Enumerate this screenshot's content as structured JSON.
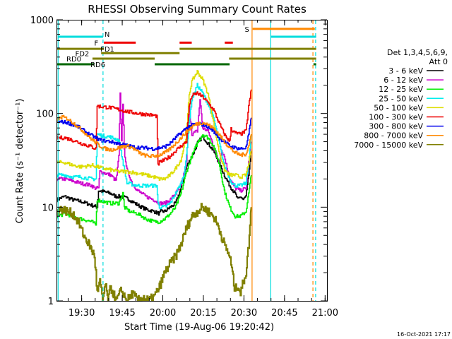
{
  "chart_data": {
    "type": "line",
    "title": "RHESSI Observing Summary Count Rates",
    "xlabel": "Start Time (19-Aug-06 19:20:42)",
    "ylabel": "Count Rate (s⁻¹ detector⁻¹)",
    "yscale": "log",
    "ylim": [
      1,
      1000
    ],
    "xlim_minutes": [
      0,
      100
    ],
    "x_ticks": [
      {
        "label": "19:30",
        "minute": 9.3
      },
      {
        "label": "19:45",
        "minute": 24.3
      },
      {
        "label": "20:00",
        "minute": 39.3
      },
      {
        "label": "20:15",
        "minute": 54.3
      },
      {
        "label": "20:30",
        "minute": 69.3
      },
      {
        "label": "20:45",
        "minute": 84.3
      },
      {
        "label": "21:00",
        "minute": 99.3
      }
    ],
    "y_ticks": [
      {
        "label": "1",
        "value": 1
      },
      {
        "label": "10",
        "value": 10
      },
      {
        "label": "100",
        "value": 100
      },
      {
        "label": "1000",
        "value": 1000
      }
    ],
    "legend_header": [
      "Det 1,3,4,5,6,9,",
      "Att 0"
    ],
    "legend_position": "right",
    "timestamp": "16-Oct-2021 17:17",
    "series": [
      {
        "name": "3 - 6 keV",
        "color": "#000000",
        "x": [
          0,
          3,
          6,
          9,
          13,
          15,
          15.5,
          18,
          20,
          22,
          24,
          27,
          30,
          33,
          36,
          38,
          38.5,
          40,
          42,
          44,
          46,
          48,
          50,
          51,
          52,
          54,
          56,
          58,
          60,
          62,
          64,
          66,
          67,
          68,
          69,
          70,
          71,
          72
        ],
        "y": [
          12,
          13,
          12,
          11.5,
          10.5,
          10,
          15,
          14.5,
          14,
          13,
          13,
          12,
          10.5,
          9.5,
          9,
          8.5,
          9,
          9,
          10,
          11,
          16,
          27,
          35,
          40,
          48,
          57,
          48,
          40,
          30,
          22,
          17,
          14,
          12,
          13,
          12,
          13,
          22,
          40
        ]
      },
      {
        "name": "6 - 12 keV",
        "color": "#cc00cc",
        "x": [
          0,
          3,
          6,
          9,
          13,
          14,
          15.5,
          16,
          18,
          20,
          22,
          23,
          23.5,
          24,
          24.5,
          25,
          26,
          28,
          30,
          33,
          36,
          38,
          40,
          42,
          44,
          46,
          48,
          49,
          50,
          52,
          53,
          54,
          56,
          58,
          60,
          61,
          62,
          64,
          66,
          68,
          70,
          71,
          72
        ],
        "y": [
          20,
          20,
          19,
          18,
          17,
          16,
          16,
          24,
          23,
          22,
          19,
          35,
          160,
          50,
          130,
          40,
          25,
          18,
          15,
          13,
          12,
          11,
          11,
          12,
          14,
          17,
          30,
          120,
          60,
          65,
          140,
          70,
          65,
          45,
          30,
          40,
          35,
          20,
          16,
          15,
          16,
          30,
          50
        ]
      },
      {
        "name": "12 - 25 keV",
        "color": "#00ee00",
        "x": [
          0,
          3,
          6,
          9,
          13,
          14.5,
          15,
          17,
          20,
          23,
          24,
          24.5,
          25,
          27,
          30,
          33,
          36,
          38,
          40,
          42,
          44,
          46,
          48,
          50,
          52,
          54,
          56,
          58,
          60,
          62,
          64,
          66,
          68,
          70,
          71,
          72
        ],
        "y": [
          8,
          8.5,
          8,
          7.5,
          7,
          6.5,
          12,
          11.5,
          11,
          11,
          13,
          14,
          10,
          9,
          8.5,
          7.5,
          7,
          7,
          7.5,
          8.5,
          10,
          14,
          24,
          35,
          48,
          60,
          55,
          45,
          30,
          15,
          10,
          8,
          8,
          9,
          14,
          22
        ]
      },
      {
        "name": "25 - 50 keV",
        "color": "#00eeee",
        "x": [
          0,
          3,
          6,
          9,
          13,
          14.5,
          15,
          17,
          20,
          23,
          26,
          30,
          33,
          36,
          37,
          37.5,
          38,
          40,
          42,
          44,
          46,
          47,
          48,
          49,
          50,
          52,
          54,
          56,
          58,
          60,
          62,
          64,
          65,
          66,
          68,
          70,
          71,
          72
        ],
        "y": [
          22,
          22,
          21,
          21,
          20,
          20,
          60,
          58,
          56,
          52,
          18,
          17,
          17,
          17,
          17,
          11,
          10,
          10,
          11,
          14,
          18,
          22,
          35,
          80,
          140,
          200,
          165,
          125,
          90,
          50,
          28,
          20,
          18,
          17,
          17,
          18,
          30,
          60
        ]
      },
      {
        "name": "50 - 100 keV",
        "color": "#dddd00",
        "x": [
          0,
          3,
          6,
          9,
          13,
          15,
          17,
          20,
          23,
          26,
          30,
          33,
          36,
          38,
          40,
          42,
          44,
          46,
          48,
          49,
          50,
          52,
          54,
          56,
          58,
          60,
          62,
          64,
          66,
          68,
          70,
          71,
          72
        ],
        "y": [
          30,
          30,
          28,
          27,
          28,
          27,
          26,
          25,
          24,
          24,
          23,
          22,
          21,
          20,
          20,
          22,
          26,
          32,
          60,
          160,
          220,
          280,
          230,
          160,
          80,
          40,
          25,
          22,
          22,
          21,
          22,
          30,
          40
        ]
      },
      {
        "name": "100 - 300 keV",
        "color": "#ee0000",
        "x": [
          0,
          3,
          6,
          9,
          13,
          14.5,
          15,
          17,
          20,
          23,
          26,
          30,
          33,
          36,
          37,
          37.5,
          38,
          40,
          42,
          44,
          46,
          48,
          49,
          50,
          52,
          54,
          56,
          58,
          60,
          62,
          64,
          64.5,
          65,
          66,
          68,
          70,
          71,
          72
        ],
        "y": [
          55,
          55,
          52,
          48,
          44,
          42,
          120,
          118,
          115,
          110,
          105,
          100,
          98,
          95,
          94,
          28,
          30,
          32,
          35,
          40,
          45,
          50,
          120,
          155,
          165,
          150,
          130,
          110,
          80,
          60,
          50,
          70,
          65,
          62,
          60,
          65,
          120,
          180
        ]
      },
      {
        "name": "300 - 800 keV",
        "color": "#0000ee",
        "x": [
          0,
          4,
          8,
          12,
          16,
          20,
          24,
          28,
          32,
          36,
          38,
          40,
          42,
          44,
          46,
          48,
          50,
          52,
          54,
          56,
          58,
          60,
          62,
          64,
          66,
          68,
          70,
          71,
          72
        ],
        "y": [
          82,
          80,
          72,
          60,
          52,
          50,
          47,
          44,
          43,
          42,
          43,
          44,
          48,
          55,
          62,
          70,
          75,
          77,
          76,
          72,
          65,
          55,
          50,
          45,
          43,
          42,
          43,
          60,
          90
        ]
      },
      {
        "name": "800 - 7000 keV",
        "color": "#ff8800",
        "x": [
          0,
          2,
          4,
          6,
          8,
          10,
          12,
          14,
          16,
          18,
          20,
          22,
          24,
          26,
          28,
          30,
          32,
          34,
          36,
          38,
          40,
          42,
          44,
          46,
          48,
          50,
          52,
          54,
          56,
          58,
          60,
          62,
          64,
          66,
          68,
          70,
          71,
          72
        ],
        "y": [
          85,
          92,
          88,
          80,
          72,
          64,
          56,
          50,
          45,
          42,
          41,
          42,
          44,
          45,
          43,
          39,
          36,
          35,
          35,
          36,
          38,
          42,
          48,
          55,
          64,
          72,
          78,
          80,
          76,
          69,
          60,
          50,
          43,
          38,
          36,
          37,
          45,
          60
        ]
      },
      {
        "name": "7000 - 15000 keV",
        "color": "#808000",
        "x": [
          0,
          2,
          4,
          6,
          8,
          10,
          12,
          14,
          14.5,
          15,
          16,
          17,
          18,
          19,
          20,
          22,
          24,
          26,
          28,
          30,
          32,
          34,
          36,
          38,
          40,
          42,
          44,
          46,
          48,
          50,
          52,
          54,
          56,
          58,
          60,
          62,
          64,
          65,
          65.5,
          66,
          67,
          68,
          69,
          70,
          71,
          72
        ],
        "y": [
          9,
          9.5,
          9,
          8.5,
          7,
          5,
          4,
          3,
          2,
          1.2,
          1.6,
          1,
          1.5,
          1,
          1.4,
          1,
          1.3,
          1,
          1.2,
          1,
          1.1,
          1,
          1.1,
          1.4,
          2,
          2.5,
          3,
          4,
          6,
          8,
          9,
          10,
          9,
          8,
          6,
          4,
          3,
          2,
          1.5,
          1.3,
          1.5,
          1.2,
          1.6,
          2,
          4,
          10
        ]
      }
    ],
    "vertical_markers": [
      {
        "minute": 0.6,
        "color": "#00dddd",
        "style": "solid"
      },
      {
        "minute": 17.2,
        "color": "#00dddd",
        "style": "dashed"
      },
      {
        "minute": 72.3,
        "color": "#ff8800",
        "style": "solid"
      },
      {
        "minute": 79.2,
        "color": "#00dddd",
        "style": "solid"
      },
      {
        "minute": 94.8,
        "color": "#ff8800",
        "style": "dashed"
      },
      {
        "minute": 95.8,
        "color": "#00dddd",
        "style": "dashed"
      }
    ],
    "flag_bars": [
      {
        "label": "S",
        "color": "#ff8800",
        "value": 800,
        "segments": [
          [
            72.5,
            95.5
          ]
        ],
        "label_minute": 70.4
      },
      {
        "label": "N",
        "color": "#00dddd",
        "value": 660,
        "segments": [
          [
            0.5,
            17.2
          ],
          [
            79.2,
            96
          ]
        ],
        "label_minute": 18.7
      },
      {
        "label": "F",
        "color": "#ee0000",
        "value": 570,
        "segments": [
          [
            17.5,
            29.3
          ],
          [
            45.5,
            50
          ],
          [
            62.2,
            65.2
          ]
        ],
        "label_minute": 14.7
      },
      {
        "label": "FD1",
        "color": "#808000",
        "value": 490,
        "segments": [
          [
            0,
            17.5
          ],
          [
            45.5,
            96
          ]
        ],
        "label_minute": 18.8
      },
      {
        "label": "FD2",
        "color": "#808000",
        "value": 440,
        "segments": [
          [
            16.5,
            45.5
          ]
        ],
        "label_minute": 9.5
      },
      {
        "label": "RD0",
        "color": "#808000",
        "value": 385,
        "segments": [
          [
            13.3,
            36.3
          ],
          [
            63.8,
            96
          ]
        ],
        "label_minute": 6.4
      },
      {
        "label": "RD6",
        "color": "#006600",
        "value": 335,
        "segments": [
          [
            0,
            14
          ],
          [
            36.3,
            64
          ],
          [
            95,
            96
          ]
        ],
        "label_minute": 15.3
      }
    ]
  }
}
